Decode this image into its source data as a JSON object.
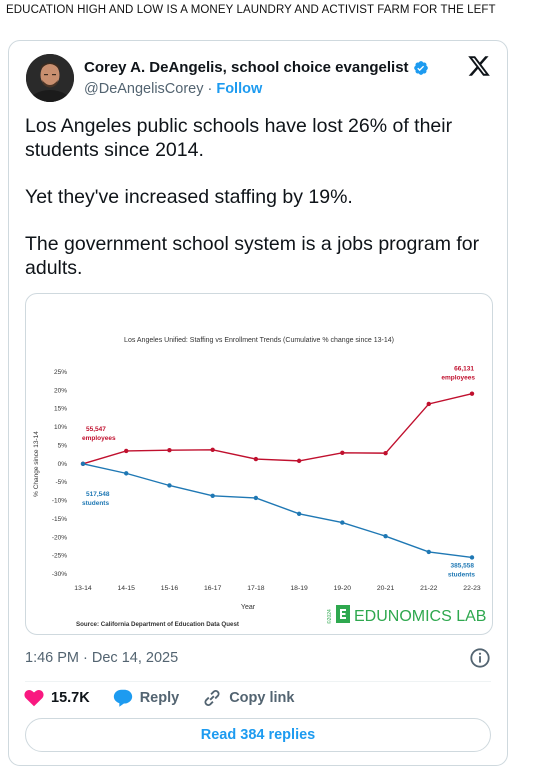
{
  "headline": "EDUCATION HIGH AND LOW IS A MONEY LAUNDRY AND ACTIVIST FARM FOR THE LEFT",
  "tweet": {
    "author_name": "Corey A. DeAngelis, school choice evangelist",
    "handle": "@DeAngelisCorey",
    "separator": "·",
    "follow_label": "Follow",
    "paragraphs": [
      "Los Angeles public schools have lost 26% of their students since 2014.",
      "Yet they've increased staffing by 19%.",
      "The government school system is a jobs program for adults."
    ],
    "timestamp": "1:46 PM · Dec 14, 2025",
    "likes": "15.7K",
    "reply_label": "Reply",
    "copy_link_label": "Copy link",
    "read_replies_label": "Read 384 replies"
  },
  "colors": {
    "employees": "#c0102e",
    "students": "#1f78b4",
    "like_heart": "#f91880",
    "accent": "#1d9bf0",
    "brand_green": "#2fa84f"
  },
  "chart_data": {
    "type": "line",
    "title": "Los Angeles Unified: Staffing vs Enrollment Trends (Cumulative % change since 13-14)",
    "xlabel": "Year",
    "ylabel": "% Change since 13-14",
    "categories": [
      "13-14",
      "14-15",
      "15-16",
      "16-17",
      "17-18",
      "18-19",
      "19-20",
      "20-21",
      "21-22",
      "22-23"
    ],
    "y_ticks": [
      "25%",
      "20%",
      "15%",
      "10%",
      "5%",
      "0%",
      "-5%",
      "-10%",
      "-15%",
      "-20%",
      "-25%",
      "-30%"
    ],
    "ylim": [
      -30,
      25
    ],
    "grid": false,
    "series": [
      {
        "key": "employees",
        "values": [
          0,
          3.5,
          3.7,
          3.8,
          1.3,
          0.8,
          3.0,
          2.9,
          16.3,
          19.1
        ],
        "start_label_value": "55,547",
        "start_label_unit": "employees",
        "end_label_value": "66,131",
        "end_label_unit": "employees"
      },
      {
        "key": "students",
        "values": [
          0,
          -2.6,
          -5.9,
          -8.7,
          -9.3,
          -13.6,
          -16.0,
          -19.7,
          -24.0,
          -25.5
        ],
        "start_label_value": "517,548",
        "start_label_unit": "students",
        "end_label_value": "385,558",
        "end_label_unit": "students"
      }
    ],
    "source": "Source: California Department of Education Data Quest",
    "brand_year": "©2024",
    "brand_name": "EDUNOMICS LAB"
  }
}
